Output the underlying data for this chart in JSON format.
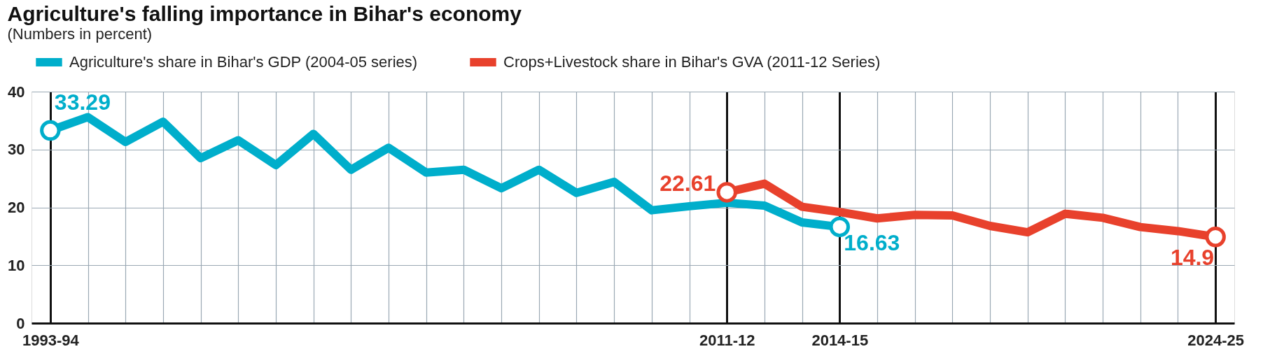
{
  "chart_data": {
    "type": "line",
    "title": "Agriculture's falling importance in Bihar's economy",
    "subtitle": "(Numbers in percent)",
    "categories": [
      "1993-94",
      null,
      null,
      null,
      null,
      null,
      null,
      null,
      null,
      null,
      null,
      null,
      null,
      null,
      null,
      null,
      null,
      null,
      "2011-12",
      null,
      null,
      "2014-15",
      null,
      null,
      null,
      null,
      null,
      null,
      null,
      null,
      null,
      "2024-25"
    ],
    "series": [
      {
        "name": "Agriculture's share in Bihar's GDP (2004-05 series)",
        "color": "#00aecb",
        "values": [
          33.29,
          35.6,
          31.3,
          34.8,
          28.5,
          31.6,
          27.3,
          32.7,
          26.5,
          30.3,
          26.0,
          26.5,
          23.3,
          26.5,
          22.5,
          24.4,
          19.5,
          20.2,
          20.8,
          20.3,
          17.4,
          16.63,
          null,
          null,
          null,
          null,
          null,
          null,
          null,
          null,
          null,
          null
        ],
        "value_labels": [
          "33.29",
          null,
          null,
          null,
          null,
          null,
          null,
          null,
          null,
          null,
          null,
          null,
          null,
          null,
          null,
          null,
          null,
          null,
          null,
          null,
          null,
          "16.63",
          null,
          null,
          null,
          null,
          null,
          null,
          null,
          null,
          null,
          null
        ]
      },
      {
        "name": "Crops+Livestock share in Bihar's GVA (2011-12 Series)",
        "color": "#e8412c",
        "values": [
          null,
          null,
          null,
          null,
          null,
          null,
          null,
          null,
          null,
          null,
          null,
          null,
          null,
          null,
          null,
          null,
          null,
          null,
          22.61,
          24.1,
          20.1,
          19.2,
          18.1,
          18.7,
          18.6,
          16.8,
          15.7,
          18.9,
          18.2,
          16.6,
          15.9,
          14.9
        ],
        "value_labels": [
          null,
          null,
          null,
          null,
          null,
          null,
          null,
          null,
          null,
          null,
          null,
          null,
          null,
          null,
          null,
          null,
          null,
          null,
          "22.61",
          null,
          null,
          null,
          null,
          null,
          null,
          null,
          null,
          null,
          null,
          null,
          null,
          "14.9"
        ]
      }
    ],
    "ylim": [
      0,
      40
    ],
    "yticks": [
      0,
      10,
      20,
      30,
      40
    ],
    "grid": true,
    "legend": "top left",
    "line_style": "solid"
  }
}
